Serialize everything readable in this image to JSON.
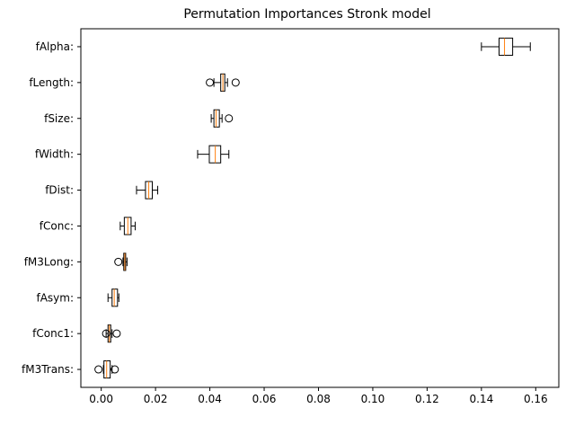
{
  "chart_data": {
    "type": "boxplot",
    "orientation": "horizontal",
    "title": "Permutation Importances Stronk model",
    "xlabel": "",
    "ylabel": "",
    "xlim": [
      -0.0075,
      0.1685
    ],
    "xticks": [
      0.0,
      0.02,
      0.04,
      0.06,
      0.08,
      0.1,
      0.12,
      0.14,
      0.16
    ],
    "xtick_labels": [
      "0.00",
      "0.02",
      "0.04",
      "0.06",
      "0.08",
      "0.10",
      "0.12",
      "0.14",
      "0.16"
    ],
    "grid": false,
    "categories": [
      "fAlpha:",
      "fLength:",
      "fSize:",
      "fWidth:",
      "fDist:",
      "fConc:",
      "fM3Long:",
      "fAsym:",
      "fConc1:",
      "fM3Trans:"
    ],
    "boxes": [
      {
        "label": "fAlpha:",
        "whislo": 0.14,
        "q1": 0.1465,
        "med": 0.1485,
        "q3": 0.1515,
        "whishi": 0.158,
        "fliers": []
      },
      {
        "label": "fLength:",
        "whislo": 0.0415,
        "q1": 0.044,
        "med": 0.0448,
        "q3": 0.0455,
        "whishi": 0.0465,
        "fliers": [
          0.04,
          0.0495
        ]
      },
      {
        "label": "fSize:",
        "whislo": 0.0405,
        "q1": 0.0415,
        "med": 0.0423,
        "q3": 0.0435,
        "whishi": 0.0445,
        "fliers": [
          0.047
        ]
      },
      {
        "label": "fWidth:",
        "whislo": 0.0355,
        "q1": 0.0398,
        "med": 0.042,
        "q3": 0.044,
        "whishi": 0.047,
        "fliers": []
      },
      {
        "label": "fDist:",
        "whislo": 0.013,
        "q1": 0.0163,
        "med": 0.0175,
        "q3": 0.0188,
        "whishi": 0.0208,
        "fliers": []
      },
      {
        "label": "fConc:",
        "whislo": 0.007,
        "q1": 0.0085,
        "med": 0.0098,
        "q3": 0.011,
        "whishi": 0.0125,
        "fliers": []
      },
      {
        "label": "fM3Long:",
        "whislo": 0.008,
        "q1": 0.0083,
        "med": 0.0087,
        "q3": 0.009,
        "whishi": 0.0095,
        "fliers": [
          0.0063
        ]
      },
      {
        "label": "fAsym:",
        "whislo": 0.0025,
        "q1": 0.004,
        "med": 0.0048,
        "q3": 0.006,
        "whishi": 0.0065,
        "fliers": []
      },
      {
        "label": "fConc1:",
        "whislo": 0.0018,
        "q1": 0.0025,
        "med": 0.003,
        "q3": 0.0035,
        "whishi": 0.004,
        "fliers": [
          0.0018,
          0.0057
        ]
      },
      {
        "label": "fM3Trans:",
        "whislo": 0.0008,
        "q1": 0.001,
        "med": 0.002,
        "q3": 0.0033,
        "whishi": 0.004,
        "fliers": [
          -0.001,
          0.005
        ]
      }
    ],
    "colors": {
      "box": "#000000",
      "median": "#ff7f0e",
      "whisker": "#000000",
      "flier": "#000000",
      "background": "#ffffff"
    }
  }
}
